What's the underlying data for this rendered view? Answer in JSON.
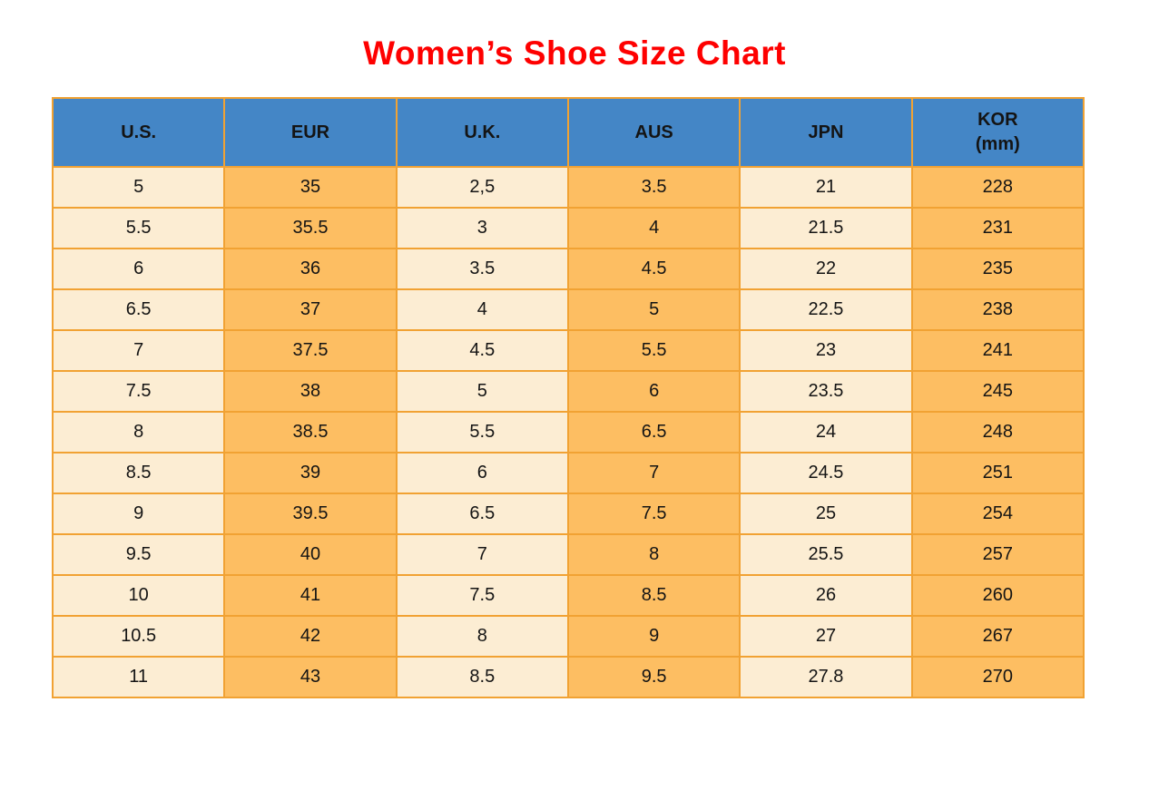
{
  "title": {
    "text": "Women’s Shoe Size Chart"
  },
  "colors": {
    "title_red": "#fe0000",
    "header_blue": "#4486c6",
    "cell_cream": "#fcedd3",
    "cell_orange": "#fdbe62",
    "border_orange": "#f1a233",
    "text_black": "#141414",
    "page_bg": "#ffffff"
  },
  "chart_data": {
    "type": "table",
    "title": "Women’s Shoe Size Chart",
    "columns": [
      {
        "label": "U.S."
      },
      {
        "label": "EUR"
      },
      {
        "label": "U.K."
      },
      {
        "label": "AUS"
      },
      {
        "label": "JPN"
      },
      {
        "label": "KOR",
        "sublabel": "(mm)"
      }
    ],
    "rows": [
      [
        "5",
        "35",
        "2,5",
        "3.5",
        "21",
        "228"
      ],
      [
        "5.5",
        "35.5",
        "3",
        "4",
        "21.5",
        "231"
      ],
      [
        "6",
        "36",
        "3.5",
        "4.5",
        "22",
        "235"
      ],
      [
        "6.5",
        "37",
        "4",
        "5",
        "22.5",
        "238"
      ],
      [
        "7",
        "37.5",
        "4.5",
        "5.5",
        "23",
        "241"
      ],
      [
        "7.5",
        "38",
        "5",
        "6",
        "23.5",
        "245"
      ],
      [
        "8",
        "38.5",
        "5.5",
        "6.5",
        "24",
        "248"
      ],
      [
        "8.5",
        "39",
        "6",
        "7",
        "24.5",
        "251"
      ],
      [
        "9",
        "39.5",
        "6.5",
        "7.5",
        "25",
        "254"
      ],
      [
        "9.5",
        "40",
        "7",
        "8",
        "25.5",
        "257"
      ],
      [
        "10",
        "41",
        "7.5",
        "8.5",
        "26",
        "260"
      ],
      [
        "10.5",
        "42",
        "8",
        "9",
        "27",
        "267"
      ],
      [
        "11",
        "43",
        "8.5",
        "9.5",
        "27.8",
        "270"
      ]
    ]
  }
}
